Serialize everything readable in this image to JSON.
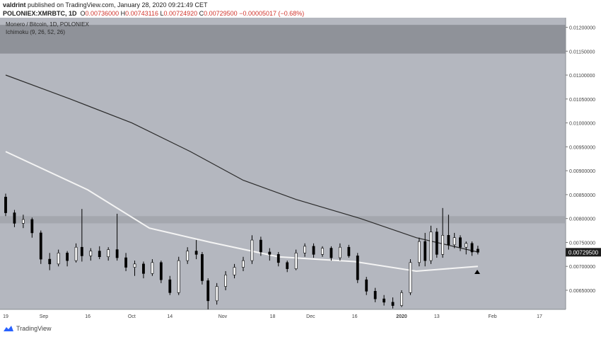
{
  "header": {
    "author": "valdrint",
    "published_text": "published on TradingView.com, January 28, 2020 09:21:49 CET",
    "symbol": "POLONIEX:XMRBTC, 1D",
    "open_label": "O",
    "open": "0.00736000",
    "high_label": "H",
    "high": "0.00743116",
    "low_label": "L",
    "low": "0.00724920",
    "close_label": "C",
    "close": "0.00729500",
    "change": "0.00729500",
    "change_text": "−0.00005017 (−0.68%)"
  },
  "chart_header": {
    "title": "Monero / Bitcoin, 1D, POLONIEX",
    "indicator": "Ichimoku (9, 26, 52, 26)"
  },
  "price_tag": "0.00729500",
  "footer": {
    "brand": "TradingView"
  },
  "colors": {
    "plot_bg": "#b4b7bf",
    "resistance_zone": "#8b8e95",
    "resistance_zone_2": "#a2a5ac",
    "ma_long": "#2b2b2b",
    "ma_short": "#f4f4f4",
    "candle_up": "#ffffff",
    "candle_down": "#000000"
  },
  "chart_data": {
    "type": "candlestick",
    "title": "Monero / Bitcoin, 1D, POLONIEX",
    "x_tick_labels": [
      "19",
      "Sep",
      "16",
      "Oct",
      "14",
      "Nov",
      "18",
      "Dec",
      "16",
      "2020",
      "13",
      "Feb",
      "17"
    ],
    "x_range": [
      "2019-08-19",
      "2020-02-24"
    ],
    "y_tick_labels": [
      "0.01200000",
      "0.01150000",
      "0.01100000",
      "0.01050000",
      "0.01000000",
      "0.00950000",
      "0.00900000",
      "0.00850000",
      "0.00800000",
      "0.00750000",
      "0.00700000",
      "0.00650000"
    ],
    "ylim": [
      0.0061,
      0.0122
    ],
    "log_scale": false,
    "grid": false,
    "resistance_zones": [
      {
        "from": 0.01145,
        "to": 0.01205
      },
      {
        "from": 0.0079,
        "to": 0.00805
      }
    ],
    "moving_average_long": {
      "color": "dark",
      "points": [
        [
          "2019-08-19",
          0.011
        ],
        [
          "2019-09-10",
          0.0105
        ],
        [
          "2019-10-01",
          0.01
        ],
        [
          "2019-10-21",
          0.0094
        ],
        [
          "2019-11-08",
          0.0088
        ],
        [
          "2019-11-26",
          0.0084
        ],
        [
          "2019-12-18",
          0.008
        ],
        [
          "2020-01-06",
          0.0076
        ],
        [
          "2020-01-27",
          0.0073
        ]
      ]
    },
    "moving_average_short": {
      "color": "white",
      "points": [
        [
          "2019-08-19",
          0.0094
        ],
        [
          "2019-09-16",
          0.0086
        ],
        [
          "2019-10-07",
          0.0078
        ],
        [
          "2019-10-28",
          0.0075
        ],
        [
          "2019-11-20",
          0.0072
        ],
        [
          "2019-12-16",
          0.0071
        ],
        [
          "2020-01-06",
          0.0069
        ],
        [
          "2020-01-27",
          0.007
        ]
      ]
    },
    "candles": [
      [
        "2019-08-19",
        0.00845,
        0.00852,
        0.00805,
        0.00812
      ],
      [
        "2019-08-22",
        0.00812,
        0.00818,
        0.00782,
        0.0079
      ],
      [
        "2019-08-25",
        0.0079,
        0.00808,
        0.0078,
        0.00798
      ],
      [
        "2019-08-28",
        0.00798,
        0.00802,
        0.0076,
        0.0077
      ],
      [
        "2019-08-31",
        0.0077,
        0.00775,
        0.00705,
        0.00715
      ],
      [
        "2019-09-03",
        0.00715,
        0.00728,
        0.00692,
        0.00705
      ],
      [
        "2019-09-06",
        0.00705,
        0.00735,
        0.007,
        0.00728
      ],
      [
        "2019-09-09",
        0.00728,
        0.00732,
        0.007,
        0.00712
      ],
      [
        "2019-09-12",
        0.00712,
        0.00748,
        0.00708,
        0.0074
      ],
      [
        "2019-09-14",
        0.0074,
        0.0082,
        0.0071,
        0.00722
      ],
      [
        "2019-09-17",
        0.00722,
        0.00738,
        0.00712,
        0.00732
      ],
      [
        "2019-09-20",
        0.00732,
        0.00742,
        0.00715,
        0.0072
      ],
      [
        "2019-09-23",
        0.0072,
        0.0074,
        0.00712,
        0.00735
      ],
      [
        "2019-09-26",
        0.00735,
        0.0081,
        0.00712,
        0.00718
      ],
      [
        "2019-09-29",
        0.00718,
        0.00728,
        0.0069,
        0.00698
      ],
      [
        "2019-10-02",
        0.00698,
        0.00712,
        0.0068,
        0.00705
      ],
      [
        "2019-10-05",
        0.00705,
        0.0071,
        0.00675,
        0.00685
      ],
      [
        "2019-10-08",
        0.00685,
        0.00715,
        0.0068,
        0.00708
      ],
      [
        "2019-10-11",
        0.00708,
        0.00712,
        0.00665,
        0.00672
      ],
      [
        "2019-10-14",
        0.00672,
        0.0068,
        0.0064,
        0.00645
      ],
      [
        "2019-10-17",
        0.00645,
        0.0072,
        0.0064,
        0.00712
      ],
      [
        "2019-10-20",
        0.00712,
        0.0074,
        0.00705,
        0.00732
      ],
      [
        "2019-10-23",
        0.00732,
        0.00755,
        0.00715,
        0.00725
      ],
      [
        "2019-10-25",
        0.00725,
        0.0073,
        0.00662,
        0.0067
      ],
      [
        "2019-10-27",
        0.0067,
        0.00675,
        0.0061,
        0.00628
      ],
      [
        "2019-10-30",
        0.00628,
        0.00665,
        0.0062,
        0.00658
      ],
      [
        "2019-11-02",
        0.00658,
        0.0069,
        0.0065,
        0.00682
      ],
      [
        "2019-11-05",
        0.00682,
        0.00705,
        0.00675,
        0.00698
      ],
      [
        "2019-11-08",
        0.00698,
        0.0072,
        0.0069,
        0.00712
      ],
      [
        "2019-11-11",
        0.00712,
        0.00765,
        0.00705,
        0.00755
      ],
      [
        "2019-11-14",
        0.00755,
        0.00762,
        0.00722,
        0.0073
      ],
      [
        "2019-11-17",
        0.0073,
        0.00738,
        0.00712,
        0.00725
      ],
      [
        "2019-11-20",
        0.00725,
        0.0073,
        0.007,
        0.00708
      ],
      [
        "2019-11-23",
        0.00708,
        0.00712,
        0.00688,
        0.00695
      ],
      [
        "2019-11-26",
        0.00695,
        0.00735,
        0.00692,
        0.00728
      ],
      [
        "2019-11-29",
        0.00728,
        0.00748,
        0.0072,
        0.00742
      ],
      [
        "2019-12-02",
        0.00742,
        0.00748,
        0.00718,
        0.00725
      ],
      [
        "2019-12-05",
        0.00725,
        0.00742,
        0.0072,
        0.00738
      ],
      [
        "2019-12-08",
        0.00738,
        0.00742,
        0.00712,
        0.00718
      ],
      [
        "2019-12-11",
        0.00718,
        0.00748,
        0.00712,
        0.0074
      ],
      [
        "2019-12-14",
        0.0074,
        0.00745,
        0.00718,
        0.00722
      ],
      [
        "2019-12-17",
        0.00722,
        0.00728,
        0.00665,
        0.00672
      ],
      [
        "2019-12-20",
        0.00672,
        0.00678,
        0.0064,
        0.00648
      ],
      [
        "2019-12-23",
        0.00648,
        0.00655,
        0.00625,
        0.00632
      ],
      [
        "2019-12-26",
        0.00632,
        0.0064,
        0.00618,
        0.00625
      ],
      [
        "2019-12-29",
        0.00625,
        0.00635,
        0.00612,
        0.00618
      ],
      [
        "2020-01-01",
        0.00618,
        0.0065,
        0.00615,
        0.00645
      ],
      [
        "2020-01-04",
        0.00645,
        0.00715,
        0.0064,
        0.00708
      ],
      [
        "2020-01-07",
        0.00708,
        0.0076,
        0.007,
        0.00752
      ],
      [
        "2020-01-09",
        0.00752,
        0.0077,
        0.007,
        0.00712
      ],
      [
        "2020-01-11",
        0.00712,
        0.00785,
        0.00705,
        0.00772
      ],
      [
        "2020-01-13",
        0.00772,
        0.0078,
        0.00718,
        0.00725
      ],
      [
        "2020-01-15",
        0.00725,
        0.00822,
        0.00718,
        0.00765
      ],
      [
        "2020-01-17",
        0.00765,
        0.00808,
        0.00735,
        0.00745
      ],
      [
        "2020-01-19",
        0.00745,
        0.0077,
        0.00738,
        0.0076
      ],
      [
        "2020-01-21",
        0.0076,
        0.00765,
        0.00732,
        0.0074
      ],
      [
        "2020-01-23",
        0.0074,
        0.00752,
        0.00725,
        0.00748
      ],
      [
        "2020-01-25",
        0.00748,
        0.00752,
        0.00722,
        0.0073
      ],
      [
        "2020-01-27",
        0.00736,
        0.00743116,
        0.0072492,
        0.007295
      ]
    ]
  }
}
